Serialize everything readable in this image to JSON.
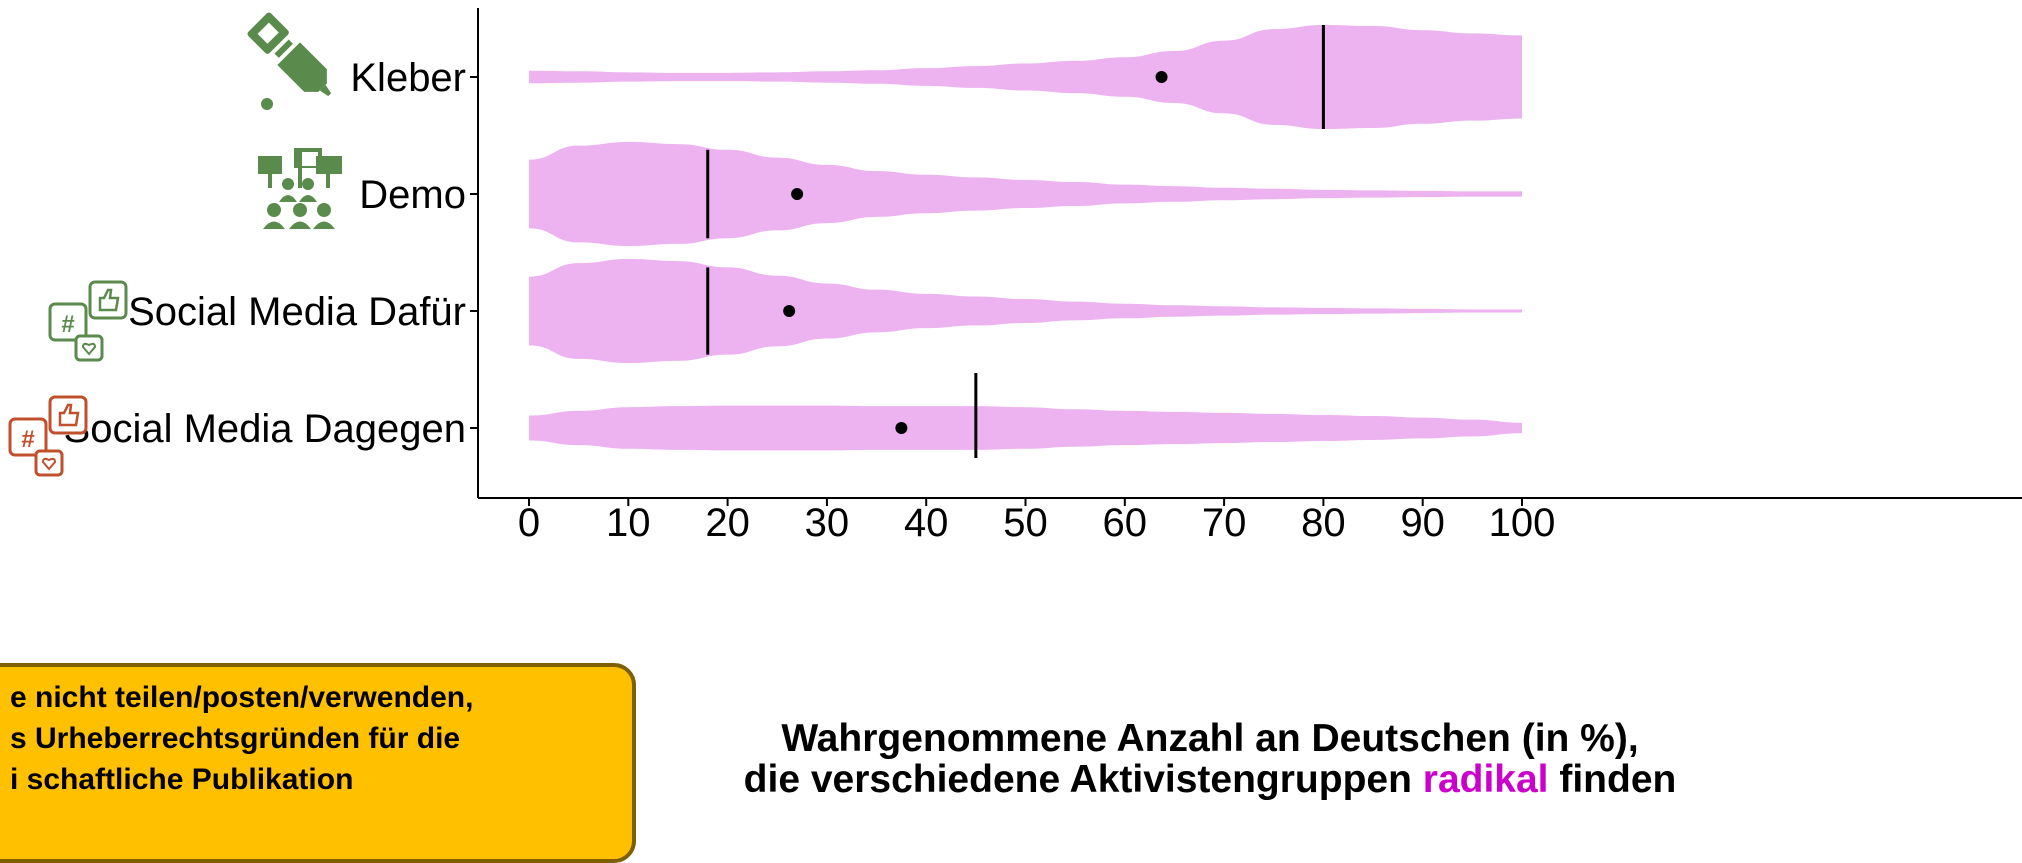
{
  "chart_data": {
    "type": "violin",
    "orientation": "horizontal",
    "categories": [
      "Kleber",
      "Demo",
      "Social Media Dafür",
      "Social Media Dagegen"
    ],
    "xlim": [
      0,
      100
    ],
    "xticks": [
      0,
      10,
      20,
      30,
      40,
      50,
      60,
      70,
      80,
      90,
      100
    ],
    "xlabel_line1": "Wahrgenommene Anzahl an Deutschen (in %),",
    "xlabel_line2_pre": "die verschiedene Aktivistengruppen",
    "xlabel_line2_highlight": "radikal",
    "xlabel_line2_post": "finden",
    "medians": [
      80,
      18,
      18,
      45
    ],
    "means": [
      63.7,
      27,
      26.2,
      37.5
    ],
    "density_grid": [
      0,
      5,
      10,
      15,
      20,
      25,
      30,
      35,
      40,
      45,
      50,
      55,
      60,
      65,
      70,
      75,
      80,
      85,
      90,
      95,
      100
    ],
    "densities": [
      [
        0.12,
        0.11,
        0.09,
        0.08,
        0.08,
        0.09,
        0.11,
        0.13,
        0.17,
        0.21,
        0.26,
        0.31,
        0.38,
        0.5,
        0.7,
        0.92,
        1.0,
        0.98,
        0.9,
        0.84,
        0.8
      ],
      [
        0.66,
        0.93,
        1.0,
        0.96,
        0.85,
        0.7,
        0.56,
        0.44,
        0.37,
        0.32,
        0.27,
        0.23,
        0.18,
        0.15,
        0.12,
        0.1,
        0.08,
        0.07,
        0.06,
        0.05,
        0.05
      ],
      [
        0.66,
        0.92,
        1.0,
        0.96,
        0.84,
        0.68,
        0.53,
        0.41,
        0.33,
        0.28,
        0.23,
        0.18,
        0.14,
        0.11,
        0.09,
        0.07,
        0.06,
        0.05,
        0.04,
        0.03,
        0.03
      ],
      [
        0.24,
        0.33,
        0.4,
        0.42,
        0.43,
        0.43,
        0.43,
        0.42,
        0.42,
        0.42,
        0.4,
        0.36,
        0.33,
        0.31,
        0.29,
        0.27,
        0.25,
        0.23,
        0.2,
        0.16,
        0.1
      ]
    ],
    "violin_color": "#ecb3f0",
    "median_color": "#000000",
    "mean_color": "#000000",
    "highlight_color": "#cc00cc",
    "icons": [
      "glue-icon",
      "demo-icon",
      "social-media-icon",
      "social-media-icon"
    ],
    "icon_colors": [
      "#5b8a4d",
      "#5b8a4d",
      "#5b8a4d",
      "#c0502c"
    ],
    "grid": false
  },
  "notice": {
    "line1": "e nicht teilen/posten/verwenden,",
    "line2": "s Urheberrechtsgründen für die",
    "line3": "i        schaftliche Publikation"
  },
  "colors": {
    "notice_bg": "#ffc000",
    "notice_border": "#7f6000"
  }
}
